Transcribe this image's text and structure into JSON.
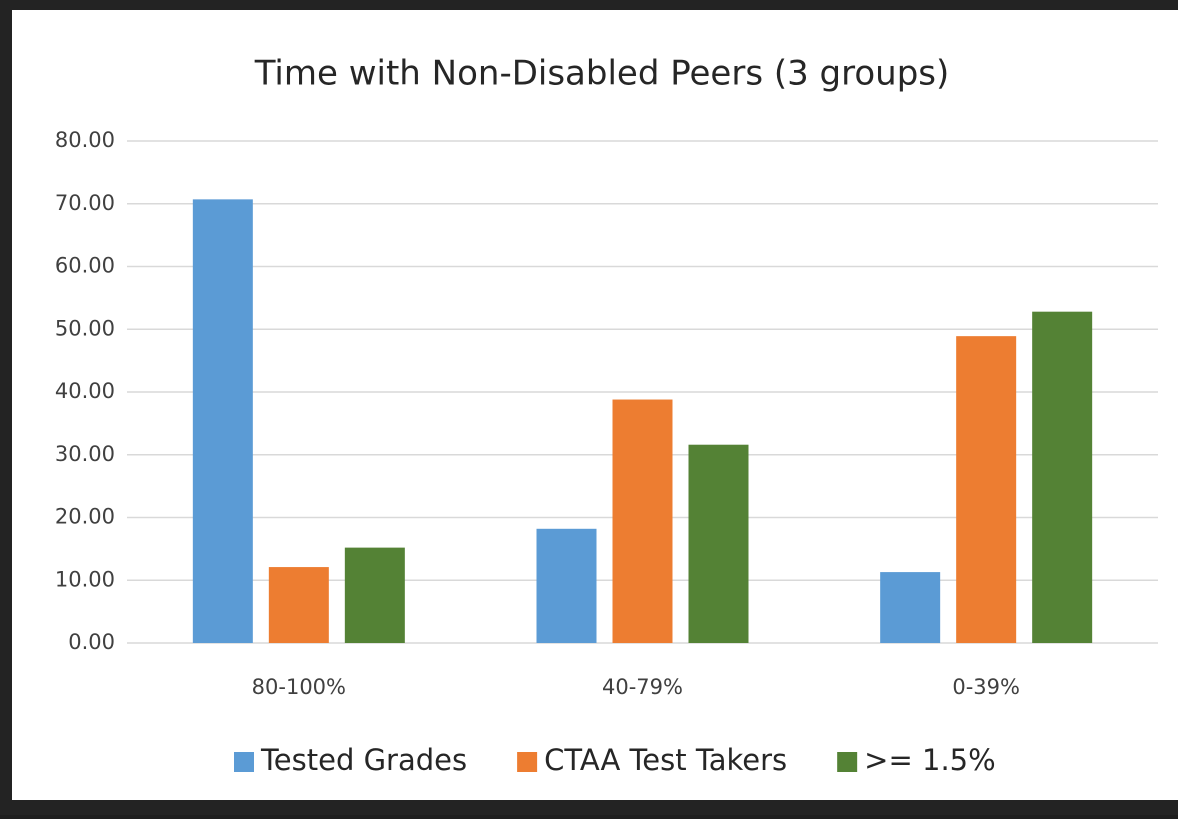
{
  "chart_data": {
    "type": "bar",
    "title": "Time with Non-Disabled Peers (3 groups)",
    "categories": [
      "80-100%",
      "40-79%",
      "0-39%"
    ],
    "series": [
      {
        "name": "Tested Grades",
        "color": "#5b9bd5",
        "values": [
          70.7,
          18.2,
          11.3
        ]
      },
      {
        "name": "CTAA Test Takers",
        "color": "#ed7d31",
        "values": [
          12.1,
          38.8,
          48.9
        ]
      },
      {
        "name": ">= 1.5%",
        "color": "#548235",
        "values": [
          15.2,
          31.6,
          52.8
        ]
      }
    ],
    "ylim": [
      0,
      80
    ],
    "yticks": [
      {
        "value": 0,
        "label": "0.00"
      },
      {
        "value": 10,
        "label": "10.00"
      },
      {
        "value": 20,
        "label": "20.00"
      },
      {
        "value": 30,
        "label": "30.00"
      },
      {
        "value": 40,
        "label": "40.00"
      },
      {
        "value": 50,
        "label": "50.00"
      },
      {
        "value": 60,
        "label": "60.00"
      },
      {
        "value": 70,
        "label": "70.00"
      },
      {
        "value": 80,
        "label": "80.00"
      }
    ],
    "grid": true,
    "legend": "bottom"
  }
}
